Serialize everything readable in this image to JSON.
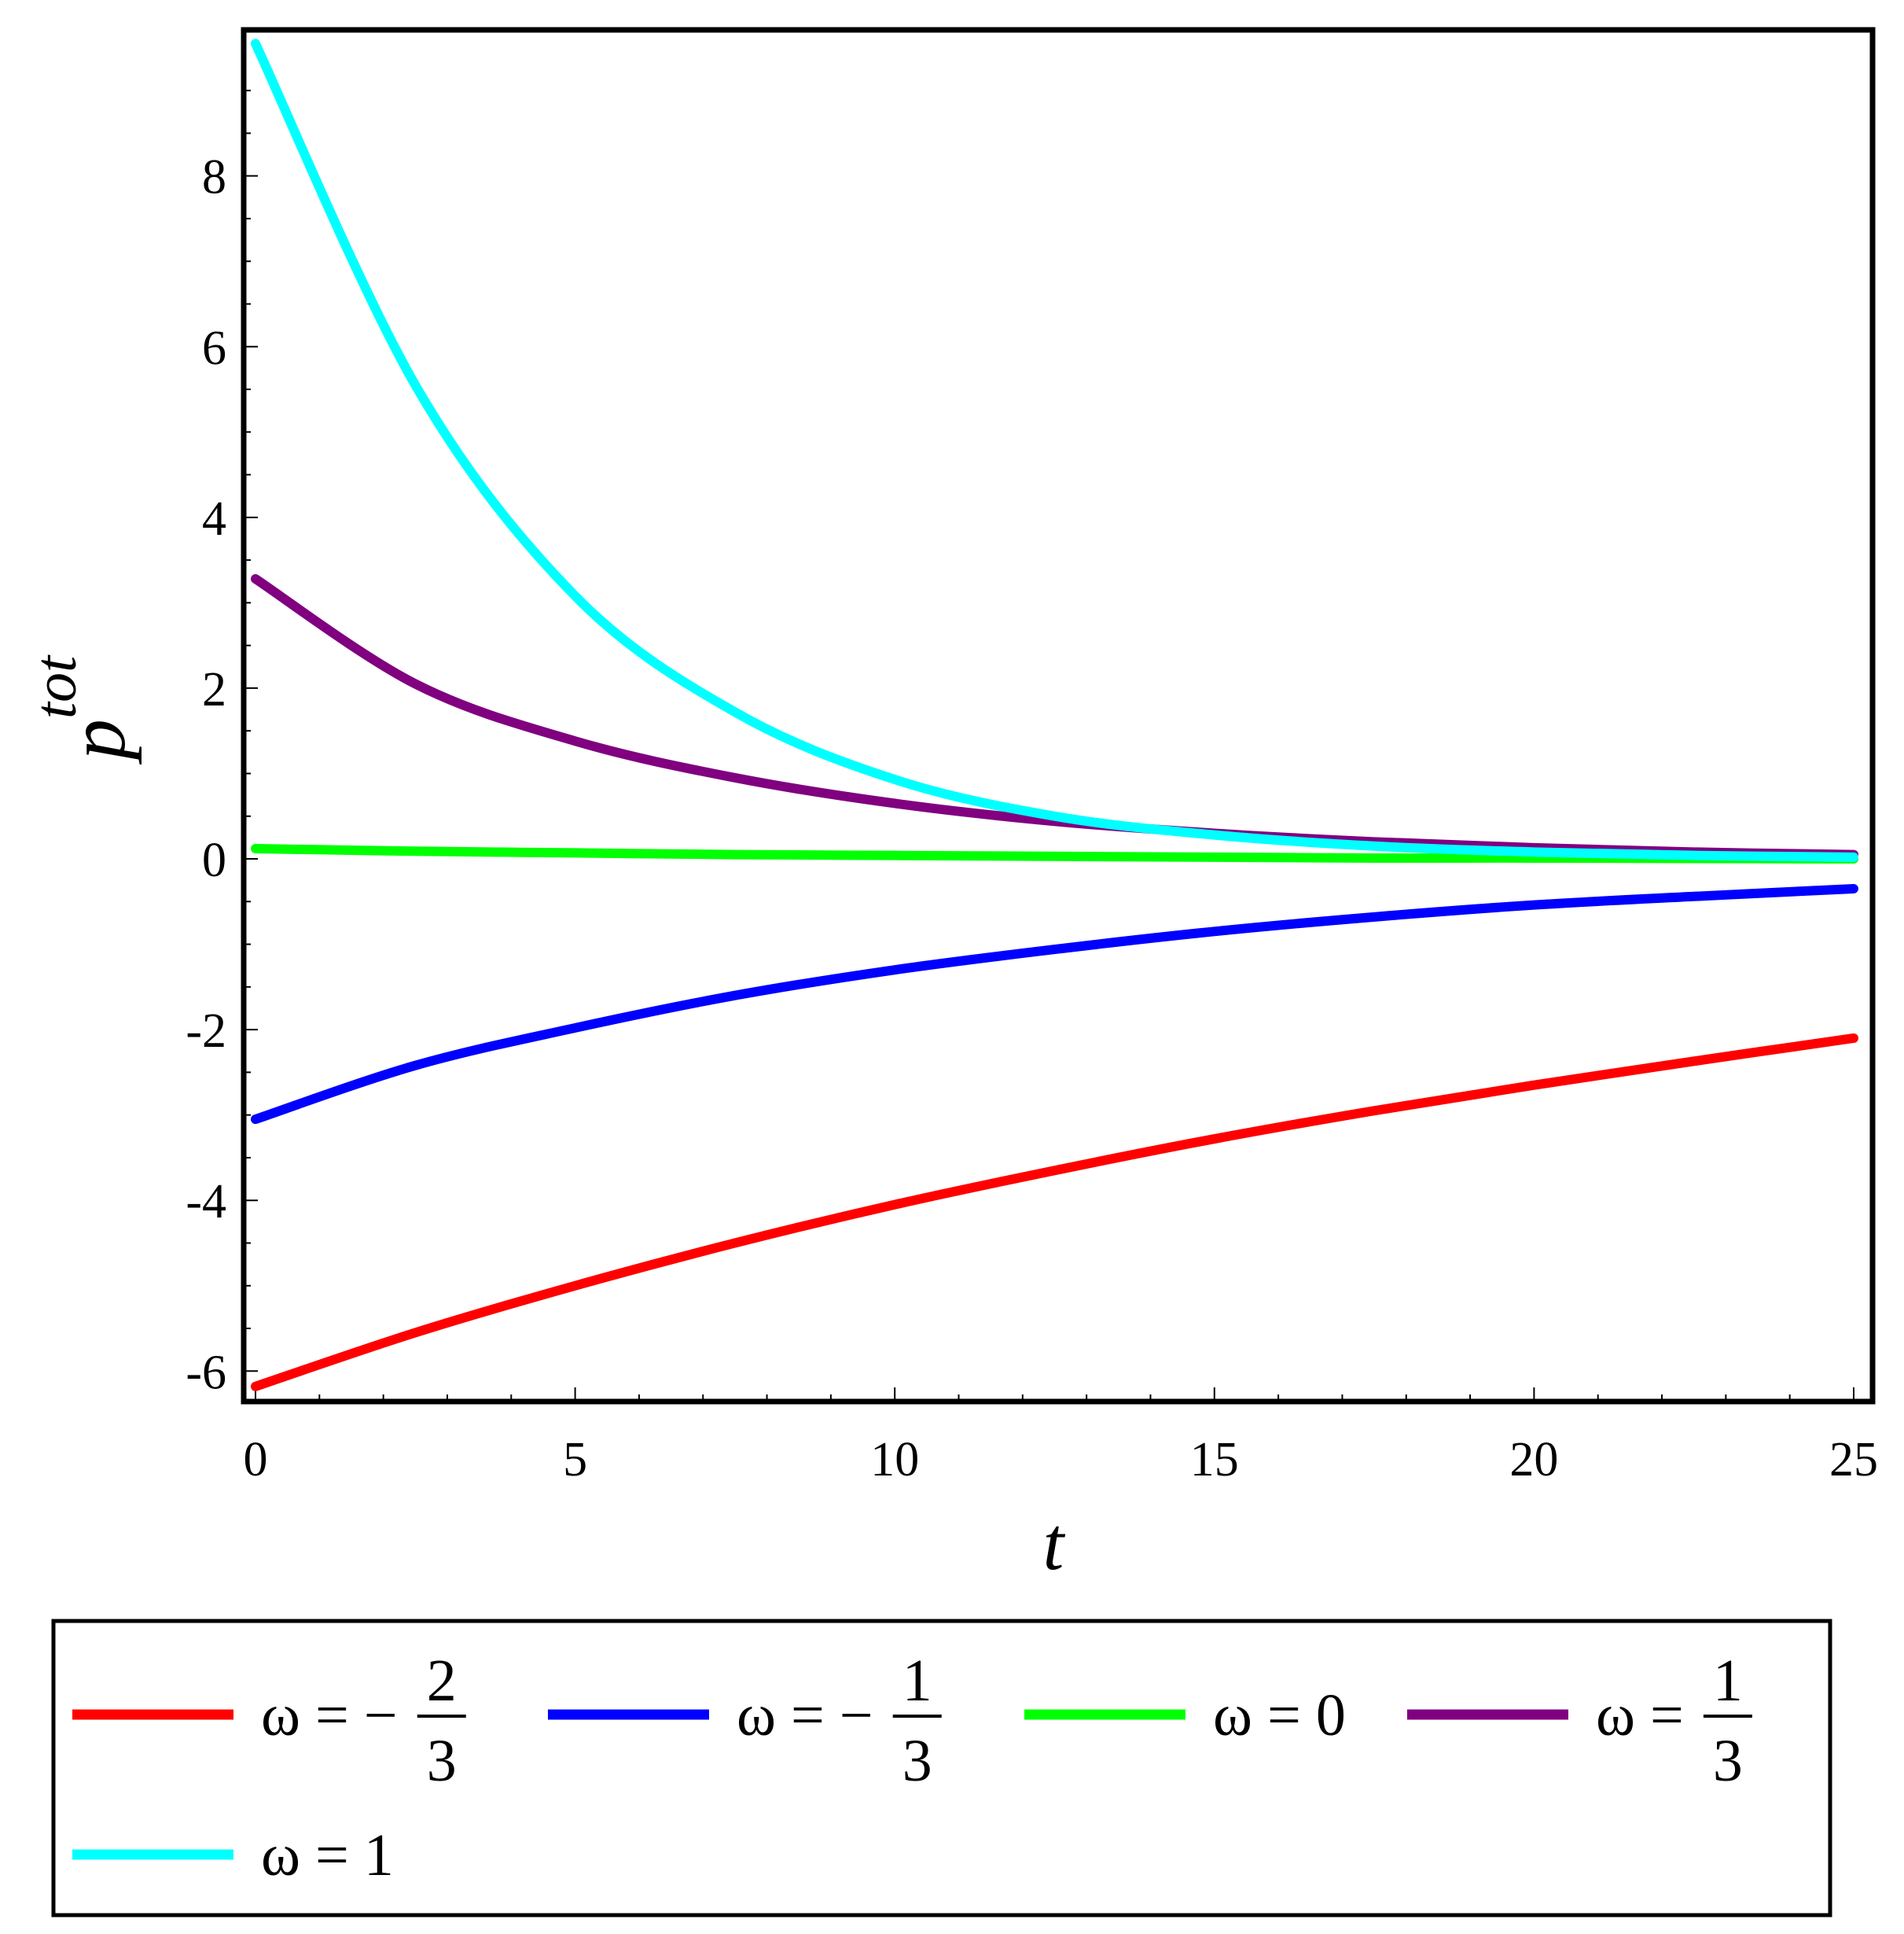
{
  "chart_data": {
    "type": "line",
    "title": "",
    "xlabel": "t",
    "ylabel_base": "p",
    "ylabel_sup": "tot",
    "xlim": [
      0,
      25
    ],
    "ylim": [
      -6.2,
      9.6
    ],
    "x_ticks": [
      0,
      5,
      10,
      15,
      20,
      25
    ],
    "x_tick_labels": [
      "0",
      "5",
      "10",
      "15",
      "20",
      "25"
    ],
    "y_ticks": [
      -6,
      -4,
      -2,
      0,
      2,
      4,
      6,
      8
    ],
    "y_tick_labels": [
      "-6",
      "-4",
      "-2",
      "0",
      "2",
      "4",
      "6",
      "8"
    ],
    "grid": false,
    "legend_position": "bottom",
    "x": [
      0,
      2.5,
      5,
      7.5,
      10,
      12.5,
      15,
      17.5,
      20,
      22.5,
      25
    ],
    "series": [
      {
        "name": "ω = − 2/3",
        "legend_prefix": "ω = −",
        "legend_num": "2",
        "legend_den": "3",
        "color": "#ff0000",
        "values": [
          -6.18,
          -5.55,
          -5.0,
          -4.5,
          -4.05,
          -3.65,
          -3.28,
          -2.95,
          -2.65,
          -2.37,
          -2.1
        ]
      },
      {
        "name": "ω = − 1/3",
        "legend_prefix": "ω = −",
        "legend_num": "1",
        "legend_den": "3",
        "color": "#0000ff",
        "values": [
          -3.05,
          -2.42,
          -1.98,
          -1.6,
          -1.3,
          -1.06,
          -0.85,
          -0.68,
          -0.54,
          -0.44,
          -0.35
        ]
      },
      {
        "name": "ω = 0",
        "legend_prefix": "ω = 0",
        "legend_num": "",
        "legend_den": "",
        "color": "#00ff00",
        "values": [
          0.12,
          0.09,
          0.07,
          0.05,
          0.04,
          0.03,
          0.02,
          0.01,
          0.01,
          0.005,
          0.0
        ]
      },
      {
        "name": "ω = 1/3",
        "legend_prefix": "ω =",
        "legend_num": "1",
        "legend_den": "3",
        "color": "#800080",
        "values": [
          3.28,
          2.05,
          1.38,
          0.95,
          0.65,
          0.44,
          0.3,
          0.2,
          0.13,
          0.08,
          0.05
        ]
      },
      {
        "name": "ω = 1",
        "legend_prefix": "ω = 1",
        "legend_num": "",
        "legend_den": "",
        "color": "#00ffff",
        "values": [
          9.55,
          5.55,
          3.08,
          1.72,
          0.93,
          0.5,
          0.28,
          0.15,
          0.08,
          0.04,
          0.02
        ]
      }
    ]
  }
}
